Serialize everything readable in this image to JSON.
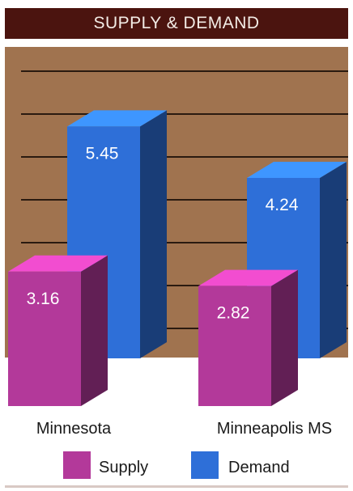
{
  "chart_data": {
    "type": "bar",
    "title": "SUPPLY & DEMAND",
    "categories": [
      "Minnesota",
      "Minneapolis MS"
    ],
    "series": [
      {
        "name": "Supply",
        "values": [
          3.16,
          2.82
        ],
        "color": "#b3399a"
      },
      {
        "name": "Demand",
        "values": [
          5.45,
          4.24
        ],
        "color": "#2e6fd8"
      }
    ],
    "ylim": [
      0,
      7
    ],
    "grid": true,
    "legend": "bottom"
  },
  "colors": {
    "header": "#4b140f",
    "panel": "#a0734f",
    "grid": "#2a1a10"
  }
}
